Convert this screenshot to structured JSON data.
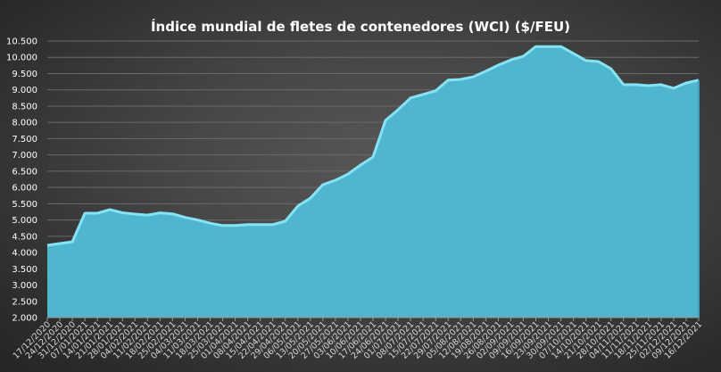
{
  "chart_data": {
    "type": "area",
    "title": "Índice mundial de fletes de contenedores (WCI) ($/FEU)",
    "xlabel": "",
    "ylabel": "",
    "ylim": [
      2000,
      10500
    ],
    "yticks": [
      "2.000",
      "2.500",
      "3.000",
      "3.500",
      "4.000",
      "4.500",
      "5.000",
      "5.500",
      "6.000",
      "6.500",
      "7.000",
      "7.500",
      "8.000",
      "8.500",
      "9.000",
      "9.500",
      "10.000",
      "10.500"
    ],
    "grid": true,
    "legend": "none",
    "colors": {
      "fill": "#4fb6d0",
      "edge": "#86e3f3",
      "grid": "#6a6a6a"
    },
    "x": [
      "17/12/2020",
      "24/12/2020",
      "31/12/2020",
      "07/01/2021",
      "14/01/2021",
      "21/01/2021",
      "28/01/2021",
      "04/02/2021",
      "11/02/2021",
      "18/02/2021",
      "25/02/2021",
      "04/03/2021",
      "11/03/2021",
      "18/03/2021",
      "25/03/2021",
      "01/04/2021",
      "08/04/2021",
      "15/04/2021",
      "22/04/2021",
      "29/04/2021",
      "06/05/2021",
      "13/05/2021",
      "20/05/2021",
      "27/05/2021",
      "03/06/2021",
      "10/06/2021",
      "17/06/2021",
      "24/06/2021",
      "01/07/2021",
      "08/07/2021",
      "15/07/2021",
      "22/07/2021",
      "29/07/2021",
      "05/08/2021",
      "12/08/2021",
      "19/08/2021",
      "26/08/2021",
      "02/09/2021",
      "09/09/2021",
      "16/09/2021",
      "23/09/2021",
      "30/09/2021",
      "07/10/2021",
      "14/10/2021",
      "21/10/2021",
      "28/10/2021",
      "04/11/2021",
      "11/11/2021",
      "18/11/2021",
      "25/11/2021",
      "02/12/2021",
      "09/12/2021",
      "16/12/2021"
    ],
    "values": [
      4221,
      4276,
      4331,
      5208,
      5208,
      5318,
      5221,
      5180,
      5150,
      5220,
      5190,
      5080,
      5000,
      4900,
      4830,
      4830,
      4860,
      4860,
      4860,
      4960,
      5430,
      5670,
      6085,
      6220,
      6410,
      6690,
      6935,
      8060,
      8390,
      8750,
      8860,
      8970,
      9300,
      9320,
      9400,
      9570,
      9760,
      9920,
      10030,
      10330,
      10330,
      10330,
      10120,
      9900,
      9870,
      9650,
      9160,
      9160,
      9130,
      9160,
      9050,
      9210,
      9300
    ]
  }
}
